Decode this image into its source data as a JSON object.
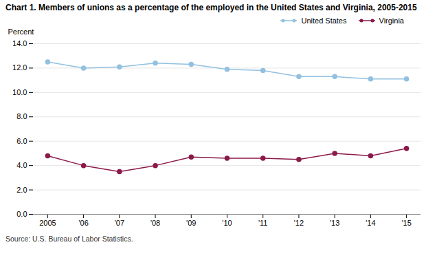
{
  "chart_data": {
    "type": "line",
    "title": "Chart 1. Members of unions as a percentage of the employed  in the United States and Virginia, 2005-2015",
    "ylabel": "Percent",
    "source": "Source: U.S. Bureau of Labor Statistics.",
    "x": [
      2005,
      2006,
      2007,
      2008,
      2009,
      2010,
      2011,
      2012,
      2013,
      2014,
      2015
    ],
    "series": [
      {
        "name": "United States",
        "color": "#92C0E0",
        "marker": "circle",
        "values": [
          12.5,
          12.0,
          12.1,
          12.4,
          12.3,
          11.9,
          11.8,
          11.3,
          11.3,
          11.1,
          11.1
        ]
      },
      {
        "name": "Virginia",
        "color": "#8B1A4A",
        "marker": "circle",
        "values": [
          4.8,
          4.0,
          3.5,
          4.0,
          4.7,
          4.6,
          4.6,
          4.5,
          5.0,
          4.8,
          5.4
        ]
      }
    ],
    "xlim": [
      2004.6,
      2015.4
    ],
    "xticks": [
      2005,
      {
        "value": 2006,
        "label": "'06"
      },
      {
        "value": 2007,
        "label": "'07"
      },
      {
        "value": 2008,
        "label": "'08"
      },
      {
        "value": 2009,
        "label": "'09"
      },
      {
        "value": 2010,
        "label": "'10"
      },
      {
        "value": 2011,
        "label": "'11"
      },
      {
        "value": 2012,
        "label": "'12"
      },
      {
        "value": 2013,
        "label": "'13"
      },
      {
        "value": 2014,
        "label": "'14"
      },
      {
        "value": 2015,
        "label": "'15"
      }
    ],
    "ylim": [
      0.0,
      14.0
    ],
    "yticks": [
      {
        "value": 0,
        "label": "0.0"
      },
      {
        "value": 2,
        "label": "2.0"
      },
      {
        "value": 4,
        "label": "4.0"
      },
      {
        "value": 6,
        "label": "6.0"
      },
      {
        "value": 8,
        "label": "8.0"
      },
      {
        "value": 10,
        "label": "10.0"
      },
      {
        "value": 12,
        "label": "12.0"
      },
      {
        "value": 14,
        "label": "14.0"
      }
    ],
    "grid": true,
    "legend": "upper right"
  }
}
